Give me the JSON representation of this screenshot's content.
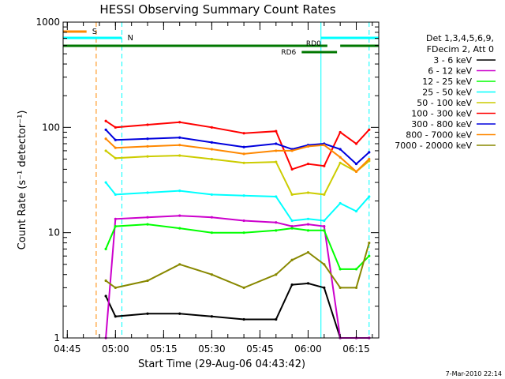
{
  "chart_data": {
    "type": "line",
    "title": "HESSI Observing Summary Count Rates",
    "xlabel": "Start Time (29-Aug-06 04:43:42)",
    "ylabel": "Count Rate (s⁻¹ detector⁻¹)",
    "y_scale": "log",
    "ylim": [
      1,
      1000
    ],
    "xlim": [
      "04:43:42",
      "06:22:00"
    ],
    "x_ticks": [
      "04:45",
      "05:00",
      "05:15",
      "05:30",
      "05:45",
      "06:00",
      "06:15"
    ],
    "y_ticks": [
      "1",
      "10",
      "100",
      "1000"
    ],
    "grid": false,
    "legend_position": "right",
    "legend_header": [
      "Det 1,3,4,5,6,9,",
      "FDecim 2, Att 0"
    ],
    "timestamp": "7-Mar-2010 22:14",
    "flag_labels": {
      "saa": "S",
      "night": "N",
      "rd0": "RD0",
      "rd6": "RD6"
    },
    "flags": {
      "saa_vline": "04:54",
      "night_vlines": [
        "04:43:42",
        "05:02",
        "06:04",
        "06:19"
      ],
      "saa_bar": [
        "04:43:42",
        "04:51"
      ],
      "night_bars": [
        [
          "04:43:42",
          "05:02"
        ],
        [
          "06:04",
          "06:22"
        ]
      ],
      "rd0_bars": [
        [
          "04:43:42",
          "06:06"
        ],
        [
          "06:10",
          "06:22"
        ]
      ],
      "rd6_bar": [
        "05:58",
        "06:09"
      ]
    },
    "series": [
      {
        "name": "3 - 6 keV",
        "color": "#000000",
        "x": [
          "04:57",
          "05:00",
          "05:10",
          "05:20",
          "05:30",
          "05:40",
          "05:50",
          "05:55",
          "06:00",
          "06:05",
          "06:10",
          "06:15",
          "06:19"
        ],
        "y": [
          2.5,
          1.6,
          1.7,
          1.7,
          1.6,
          1.5,
          1.5,
          3.2,
          3.3,
          3.0,
          1.0,
          1.0,
          1.0
        ]
      },
      {
        "name": "6 - 12 keV",
        "color": "#cc00cc",
        "x": [
          "04:57",
          "05:00",
          "05:10",
          "05:20",
          "05:30",
          "05:40",
          "05:50",
          "05:55",
          "06:00",
          "06:05",
          "06:10",
          "06:15",
          "06:19"
        ],
        "y": [
          1.0,
          13.5,
          14.0,
          14.5,
          14.0,
          13.0,
          12.5,
          11.5,
          12.0,
          11.5,
          1.0,
          1.0,
          1.0
        ]
      },
      {
        "name": "12 - 25 keV",
        "color": "#00ff00",
        "x": [
          "04:57",
          "05:00",
          "05:10",
          "05:20",
          "05:30",
          "05:40",
          "05:50",
          "05:55",
          "06:00",
          "06:05",
          "06:10",
          "06:15",
          "06:19"
        ],
        "y": [
          7.0,
          11.5,
          12.0,
          11.0,
          10.0,
          10.0,
          10.5,
          11.0,
          10.5,
          10.5,
          4.5,
          4.5,
          6.0
        ]
      },
      {
        "name": "25 - 50 keV",
        "color": "#00ffff",
        "x": [
          "04:57",
          "05:00",
          "05:10",
          "05:20",
          "05:30",
          "05:40",
          "05:50",
          "05:55",
          "06:00",
          "06:05",
          "06:10",
          "06:15",
          "06:19"
        ],
        "y": [
          30.0,
          23.0,
          24.0,
          25.0,
          23.0,
          22.5,
          22.0,
          13.0,
          13.5,
          13.0,
          19.0,
          16.0,
          22.0
        ]
      },
      {
        "name": "50 - 100 keV",
        "color": "#cccc00",
        "x": [
          "04:57",
          "05:00",
          "05:10",
          "05:20",
          "05:30",
          "05:40",
          "05:50",
          "05:55",
          "06:00",
          "06:05",
          "06:10",
          "06:15",
          "06:19"
        ],
        "y": [
          60.0,
          51.0,
          53.0,
          54.0,
          50.0,
          46.0,
          47.0,
          23.0,
          24.0,
          23.0,
          46.0,
          38.0,
          48.0
        ]
      },
      {
        "name": "100 - 300 keV",
        "color": "#ff0000",
        "x": [
          "04:57",
          "05:00",
          "05:10",
          "05:20",
          "05:30",
          "05:40",
          "05:50",
          "05:55",
          "06:00",
          "06:05",
          "06:10",
          "06:15",
          "06:19"
        ],
        "y": [
          115.0,
          100.0,
          106.0,
          112.0,
          100.0,
          88.0,
          92.0,
          40.0,
          45.0,
          43.0,
          90.0,
          70.0,
          95.0
        ]
      },
      {
        "name": "300 - 800 keV",
        "color": "#0000dd",
        "x": [
          "04:57",
          "05:00",
          "05:10",
          "05:20",
          "05:30",
          "05:40",
          "05:50",
          "05:55",
          "06:00",
          "06:05",
          "06:10",
          "06:15",
          "06:19"
        ],
        "y": [
          95.0,
          76.0,
          78.0,
          80.0,
          72.0,
          65.0,
          70.0,
          62.0,
          68.0,
          70.0,
          62.0,
          45.0,
          58.0
        ]
      },
      {
        "name": "800 - 7000 keV",
        "color": "#ff8800",
        "x": [
          "04:57",
          "05:00",
          "05:10",
          "05:20",
          "05:30",
          "05:40",
          "05:50",
          "05:55",
          "06:00",
          "06:05",
          "06:10",
          "06:15",
          "06:19"
        ],
        "y": [
          78.0,
          64.0,
          66.0,
          68.0,
          62.0,
          56.0,
          60.0,
          60.0,
          66.0,
          68.0,
          52.0,
          38.0,
          50.0
        ]
      },
      {
        "name": "7000 - 20000 keV",
        "color": "#888800",
        "x": [
          "04:57",
          "05:00",
          "05:10",
          "05:20",
          "05:30",
          "05:40",
          "05:50",
          "05:55",
          "06:00",
          "06:05",
          "06:10",
          "06:15",
          "06:19"
        ],
        "y": [
          3.5,
          3.0,
          3.5,
          5.0,
          4.0,
          3.0,
          4.0,
          5.5,
          6.5,
          5.0,
          3.0,
          3.0,
          8.0
        ]
      }
    ]
  }
}
